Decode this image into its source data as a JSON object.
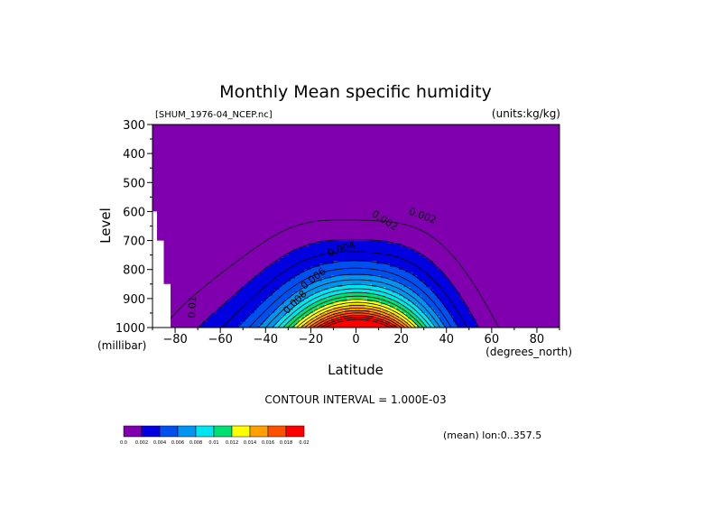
{
  "chart_data": {
    "type": "contour",
    "title": "Monthly Mean specific humidity",
    "source_label": "[SHUM_1976-04_NCEP.nc]",
    "units_label": "(units:kg/kg)",
    "xlabel": "Latitude",
    "x_unit_label": "(degrees_north)",
    "ylabel": "Level",
    "y_unit_label": "(millibar)",
    "xlim": [
      -90,
      90
    ],
    "ylim": [
      1000,
      300
    ],
    "x_ticks": [
      -80,
      -60,
      -40,
      -20,
      0,
      20,
      40,
      60,
      80
    ],
    "y_ticks": [
      300,
      400,
      500,
      600,
      700,
      800,
      900,
      1000
    ],
    "contour_interval_text": "CONTOUR INTERVAL = 1.000E-03",
    "mean_text": "(mean) lon:0..357.5",
    "contour_labels": [
      "0.002",
      "0.004",
      "0.006",
      "0.008",
      "0.01",
      "0.002"
    ],
    "colorbar": {
      "labels": [
        "0.0",
        "0.002",
        "0.004",
        "0.006",
        "0.008",
        "0.01",
        "0.012",
        "0.014",
        "0.016",
        "0.018",
        "0.02"
      ],
      "colors": [
        "#8000b0",
        "#0000e0",
        "#0050f0",
        "#0095f0",
        "#00e6f0",
        "#00e070",
        "#ffff00",
        "#ffa000",
        "#ff5000",
        "#ff0000"
      ]
    }
  }
}
